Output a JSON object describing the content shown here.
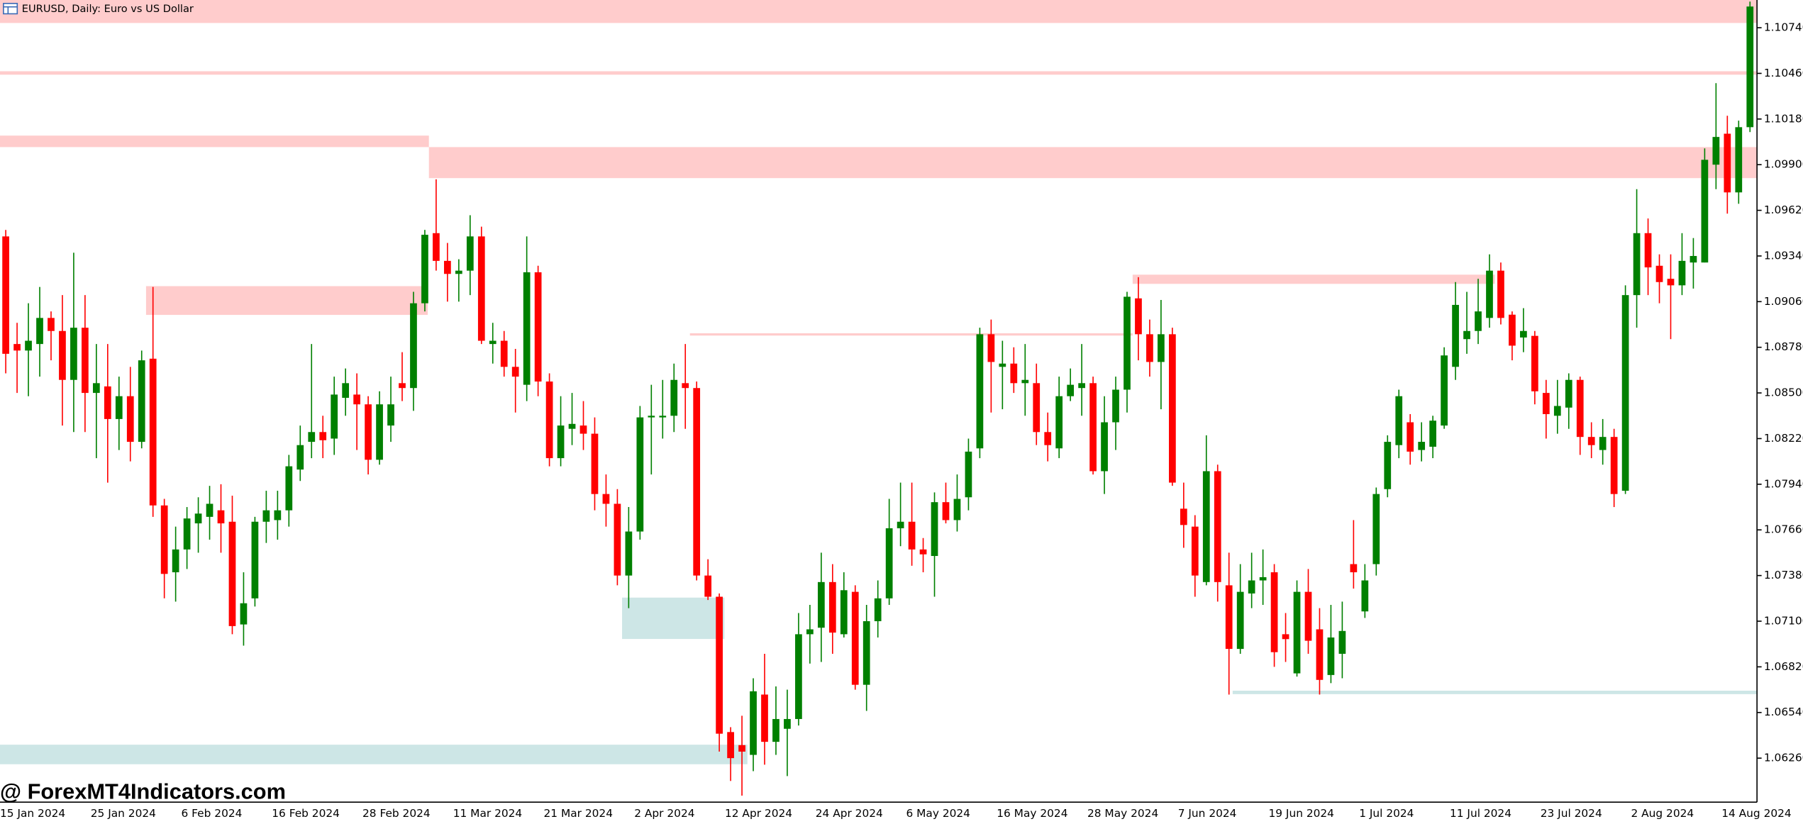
{
  "chart_data": {
    "type": "candlestick",
    "title": "EURUSD, Daily:  Euro vs US Dollar",
    "watermark": "@ ForexMT4Indicators.com",
    "up_color": "#008000",
    "down_color": "#ff0000",
    "ylim": [
      1.0599,
      1.1091
    ],
    "yticks": [
      {
        "value": 1.1074,
        "label": "1.10740"
      },
      {
        "value": 1.1046,
        "label": "1.10460"
      },
      {
        "value": 1.1018,
        "label": "1.10180"
      },
      {
        "value": 1.099,
        "label": "1.09900"
      },
      {
        "value": 1.0962,
        "label": "1.09620"
      },
      {
        "value": 1.0934,
        "label": "1.09340"
      },
      {
        "value": 1.0906,
        "label": "1.09060"
      },
      {
        "value": 1.0878,
        "label": "1.08780"
      },
      {
        "value": 1.085,
        "label": "1.08500"
      },
      {
        "value": 1.0822,
        "label": "1.08220"
      },
      {
        "value": 1.0794,
        "label": "1.07940"
      },
      {
        "value": 1.0766,
        "label": "1.07660"
      },
      {
        "value": 1.0738,
        "label": "1.07380"
      },
      {
        "value": 1.071,
        "label": "1.07100"
      },
      {
        "value": 1.0682,
        "label": "1.06820"
      },
      {
        "value": 1.0654,
        "label": "1.06540"
      },
      {
        "value": 1.0626,
        "label": "1.06260"
      }
    ],
    "categories": [
      "15 Jan 2024",
      null,
      null,
      null,
      null,
      null,
      null,
      null,
      "25 Jan 2024",
      null,
      null,
      null,
      null,
      null,
      null,
      null,
      "6 Feb 2024",
      null,
      null,
      null,
      null,
      null,
      null,
      null,
      "16 Feb 2024",
      null,
      null,
      null,
      null,
      null,
      null,
      null,
      "28 Feb 2024",
      null,
      null,
      null,
      null,
      null,
      null,
      null,
      "11 Mar 2024",
      null,
      null,
      null,
      null,
      null,
      null,
      null,
      "21 Mar 2024",
      null,
      null,
      null,
      null,
      null,
      null,
      null,
      "2 Apr 2024",
      null,
      null,
      null,
      null,
      null,
      null,
      null,
      "12 Apr 2024",
      null,
      null,
      null,
      null,
      null,
      null,
      null,
      "24 Apr 2024",
      null,
      null,
      null,
      null,
      null,
      null,
      null,
      "6 May 2024",
      null,
      null,
      null,
      null,
      null,
      null,
      null,
      "16 May 2024",
      null,
      null,
      null,
      null,
      null,
      null,
      null,
      "28 May 2024",
      null,
      null,
      null,
      null,
      null,
      null,
      null,
      "7 Jun 2024",
      null,
      null,
      null,
      null,
      null,
      null,
      null,
      "19 Jun 2024",
      null,
      null,
      null,
      null,
      null,
      null,
      null,
      "1 Jul 2024",
      null,
      null,
      null,
      null,
      null,
      null,
      null,
      "11 Jul 2024",
      null,
      null,
      null,
      null,
      null,
      null,
      null,
      "23 Jul 2024",
      null,
      null,
      null,
      null,
      null,
      null,
      null,
      "2 Aug 2024",
      null,
      null,
      null,
      null,
      null,
      null,
      null,
      "14 Aug 2024",
      null,
      null
    ],
    "open": [
      1.0946,
      1.088,
      1.0876,
      1.088,
      1.0896,
      1.0888,
      1.0858,
      1.089,
      1.085,
      1.0854,
      1.0834,
      1.0848,
      1.082,
      1.0871,
      1.0781,
      1.074,
      1.0754,
      1.077,
      1.0774,
      1.0778,
      1.0771,
      1.0708,
      1.0724,
      1.0771,
      1.0772,
      1.0778,
      1.0803,
      1.082,
      1.0826,
      1.0822,
      1.0847,
      1.0849,
      1.0843,
      1.0809,
      1.083,
      1.0856,
      1.0853,
      1.0905,
      1.0948,
      1.0931,
      1.0923,
      1.0925,
      1.0946,
      1.088,
      1.0882,
      1.0866,
      1.0855,
      1.0924,
      1.0857,
      1.081,
      1.0828,
      1.083,
      1.0825,
      1.0788,
      1.0782,
      1.0738,
      1.0765,
      1.0835,
      1.0835,
      1.0836,
      1.0856,
      1.0853,
      1.0738,
      1.0725,
      1.0642,
      1.0634,
      1.0628,
      1.0665,
      1.0636,
      1.0644,
      1.065,
      1.0702,
      1.0706,
      1.0734,
      1.0702,
      1.0728,
      1.0671,
      1.071,
      1.0724,
      1.0767,
      1.0771,
      1.0754,
      1.075,
      1.0783,
      1.0772,
      1.0786,
      1.0816,
      1.0886,
      1.0866,
      1.0868,
      1.0856,
      1.0856,
      1.0826,
      1.0816,
      1.0848,
      1.0853,
      1.0856,
      1.0802,
      1.0832,
      1.0852,
      1.0908,
      1.0886,
      1.0869,
      1.0886,
      1.0779,
      1.0768,
      1.0734,
      1.0802,
      1.0732,
      1.0693,
      1.0727,
      1.0735,
      1.074,
      1.0702,
      1.0678,
      1.0728,
      1.0705,
      1.0677,
      1.069,
      1.0745,
      1.0716,
      1.0745,
      1.0791,
      1.0818,
      1.0832,
      1.0815,
      1.0817,
      1.083,
      1.0866,
      1.0883,
      1.0888,
      1.0896,
      1.0925,
      1.0898,
      1.0884,
      1.0885,
      1.085,
      1.0836,
      1.0841,
      1.0858,
      1.0823,
      1.0815,
      1.0823,
      1.079,
      1.091,
      1.0948,
      1.0928,
      1.092,
      1.0916,
      1.093,
      1.093,
      1.099,
      1.1009,
      1.0973,
      1.1013
    ],
    "high": [
      1.095,
      1.0893,
      1.0905,
      1.0915,
      1.09,
      1.091,
      1.0936,
      1.091,
      1.088,
      1.088,
      1.086,
      1.0866,
      1.0876,
      1.0915,
      1.0785,
      1.0768,
      1.078,
      1.0786,
      1.0793,
      1.0794,
      1.0787,
      1.074,
      1.0774,
      1.079,
      1.079,
      1.0812,
      1.083,
      1.088,
      1.0836,
      1.086,
      1.0865,
      1.0862,
      1.0848,
      1.0851,
      1.086,
      1.0875,
      1.0912,
      1.095,
      1.0981,
      1.0942,
      1.0932,
      1.0959,
      1.0952,
      1.0893,
      1.0888,
      1.0877,
      1.0946,
      1.0928,
      1.0862,
      1.0848,
      1.085,
      1.0845,
      1.0835,
      1.08,
      1.0791,
      1.078,
      1.0842,
      1.0855,
      1.0858,
      1.0868,
      1.088,
      1.0857,
      1.0748,
      1.0727,
      1.0645,
      1.0652,
      1.0675,
      1.069,
      1.067,
      1.0668,
      1.0715,
      1.072,
      1.0752,
      1.0745,
      1.074,
      1.0732,
      1.072,
      1.0735,
      1.0785,
      1.0795,
      1.0795,
      1.0761,
      1.0789,
      1.0795,
      1.08,
      1.0822,
      1.089,
      1.0895,
      1.0882,
      1.0878,
      1.088,
      1.0868,
      1.0838,
      1.086,
      1.0865,
      1.088,
      1.086,
      1.0848,
      1.086,
      1.0912,
      1.0921,
      1.0895,
      1.0907,
      1.089,
      1.0795,
      1.0775,
      1.0824,
      1.0806,
      1.0752,
      1.0745,
      1.0752,
      1.0754,
      1.0745,
      1.0715,
      1.0735,
      1.0742,
      1.0718,
      1.072,
      1.0722,
      1.0772,
      1.0745,
      1.0792,
      1.0824,
      1.0852,
      1.0837,
      1.0832,
      1.0836,
      1.0878,
      1.0918,
      1.0912,
      1.092,
      1.0935,
      1.093,
      1.09,
      1.0902,
      1.0888,
      1.0858,
      1.0858,
      1.0862,
      1.086,
      1.0832,
      1.0834,
      1.0828,
      1.0916,
      1.0975,
      1.0957,
      1.0935,
      1.0935,
      1.0948,
      1.0945,
      1.1,
      1.104,
      1.102,
      1.1017,
      1.109
    ],
    "low": [
      1.0862,
      1.085,
      1.0848,
      1.086,
      1.087,
      1.083,
      1.0826,
      1.0826,
      1.081,
      1.0795,
      1.0815,
      1.0808,
      1.0816,
      1.0774,
      1.0724,
      1.0722,
      1.0742,
      1.0752,
      1.076,
      1.0752,
      1.0702,
      1.0695,
      1.0719,
      1.0758,
      1.076,
      1.0768,
      1.0796,
      1.081,
      1.081,
      1.0812,
      1.0836,
      1.0815,
      1.08,
      1.0806,
      1.082,
      1.0845,
      1.0839,
      1.09,
      1.0925,
      1.0906,
      1.0906,
      1.091,
      1.088,
      1.0868,
      1.086,
      1.0838,
      1.0845,
      1.0848,
      1.0805,
      1.0805,
      1.0818,
      1.0815,
      1.0778,
      1.0768,
      1.0732,
      1.0718,
      1.076,
      1.08,
      1.0822,
      1.0826,
      1.0828,
      1.0735,
      1.0723,
      1.063,
      1.0612,
      1.0603,
      1.0618,
      1.0622,
      1.0628,
      1.0615,
      1.0646,
      1.0684,
      1.0685,
      1.069,
      1.07,
      1.0668,
      1.0655,
      1.07,
      1.072,
      1.0756,
      1.0744,
      1.074,
      1.0725,
      1.077,
      1.0765,
      1.0778,
      1.081,
      1.0838,
      1.084,
      1.085,
      1.0836,
      1.0818,
      1.0808,
      1.081,
      1.0845,
      1.0836,
      1.08,
      1.0788,
      1.0815,
      1.0838,
      1.087,
      1.086,
      1.084,
      1.0793,
      1.0755,
      1.0725,
      1.0732,
      1.0722,
      1.0665,
      1.069,
      1.0718,
      1.072,
      1.0682,
      1.0685,
      1.0676,
      1.069,
      1.0665,
      1.0672,
      1.0675,
      1.073,
      1.0712,
      1.0738,
      1.0786,
      1.081,
      1.0806,
      1.0808,
      1.081,
      1.0828,
      1.0858,
      1.0874,
      1.088,
      1.089,
      1.0892,
      1.087,
      1.0875,
      1.0843,
      1.0822,
      1.0825,
      1.0828,
      1.0812,
      1.081,
      1.0806,
      1.078,
      1.0788,
      1.089,
      1.091,
      1.0905,
      1.0883,
      1.091,
      1.0914,
      1.093,
      1.0975,
      1.096,
      1.0966,
      1.101
    ],
    "close": [
      1.0874,
      1.0876,
      1.0882,
      1.0896,
      1.0888,
      1.0858,
      1.089,
      1.085,
      1.0856,
      1.0834,
      1.0848,
      1.082,
      1.087,
      1.0781,
      1.0739,
      1.0754,
      1.0773,
      1.0776,
      1.0782,
      1.077,
      1.0707,
      1.0721,
      1.0771,
      1.0778,
      1.0778,
      1.0805,
      1.0818,
      1.0826,
      1.0821,
      1.0849,
      1.0856,
      1.0843,
      1.0809,
      1.0843,
      1.0843,
      1.0853,
      1.0905,
      1.0947,
      1.0931,
      1.0923,
      1.0925,
      1.0946,
      1.0882,
      1.0882,
      1.0866,
      1.086,
      1.0924,
      1.0857,
      1.081,
      1.083,
      1.0831,
      1.0825,
      1.0788,
      1.0782,
      1.0738,
      1.0765,
      1.0835,
      1.0836,
      1.0836,
      1.0858,
      1.0853,
      1.0738,
      1.0725,
      1.0641,
      1.0626,
      1.063,
      1.0667,
      1.0636,
      1.065,
      1.065,
      1.0702,
      1.0705,
      1.0734,
      1.0703,
      1.0729,
      1.0671,
      1.071,
      1.0724,
      1.0767,
      1.0771,
      1.0754,
      1.0751,
      1.0783,
      1.0772,
      1.0785,
      1.0814,
      1.0886,
      1.0869,
      1.0868,
      1.0856,
      1.0858,
      1.0826,
      1.0818,
      1.0848,
      1.0855,
      1.0856,
      1.0802,
      1.0832,
      1.0852,
      1.0909,
      1.0886,
      1.0869,
      1.0886,
      1.0795,
      1.0769,
      1.0738,
      1.0802,
      1.0734,
      1.0693,
      1.0728,
      1.0735,
      1.0737,
      1.0691,
      1.0699,
      1.0728,
      1.0698,
      1.0674,
      1.07,
      1.0704,
      1.074,
      1.0735,
      1.0788,
      1.082,
      1.0848,
      1.0814,
      1.082,
      1.0833,
      1.0873,
      1.0904,
      1.0888,
      1.09,
      1.0925,
      1.0896,
      1.0879,
      1.0888,
      1.0851,
      1.0837,
      1.0842,
      1.0858,
      1.0823,
      1.0818,
      1.0823,
      1.0788,
      1.091,
      1.0948,
      1.0927,
      1.0918,
      1.0916,
      1.0931,
      1.0934,
      1.0993,
      1.1007,
      1.0973,
      1.1013,
      1.1087
    ]
  }
}
